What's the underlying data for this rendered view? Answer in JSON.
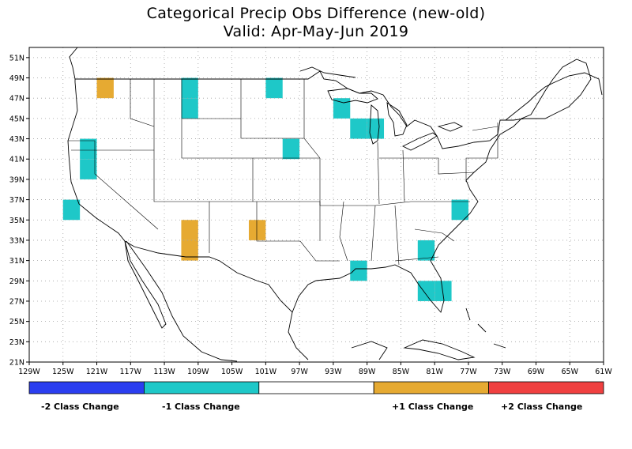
{
  "title": "Categorical Precip Obs Difference (new-old)",
  "subtitle": "Valid: Apr-May-Jun 2019",
  "colors": {
    "minus2": "#2b3ef0",
    "minus1": "#1ec8c8",
    "zero": "#ffffff",
    "plus1": "#e6aa32",
    "plus2": "#f04040",
    "grid": "#a0a0a0",
    "outline": "#000000"
  },
  "map": {
    "lon_range": [
      -129,
      -61
    ],
    "lat_range": [
      21,
      52
    ],
    "lon_ticks": [
      "129W",
      "125W",
      "121W",
      "117W",
      "113W",
      "109W",
      "105W",
      "101W",
      "97W",
      "93W",
      "89W",
      "85W",
      "81W",
      "77W",
      "73W",
      "69W",
      "65W",
      "61W"
    ],
    "lat_ticks": [
      "21N",
      "23N",
      "25N",
      "27N",
      "29N",
      "31N",
      "33N",
      "35N",
      "37N",
      "39N",
      "41N",
      "43N",
      "45N",
      "47N",
      "49N",
      "51N"
    ]
  },
  "cells": [
    {
      "lon": -120,
      "lat": 48,
      "cls": 1
    },
    {
      "lon": -110,
      "lat": 48,
      "cls": -1
    },
    {
      "lon": -110,
      "lat": 46,
      "cls": -1
    },
    {
      "lon": -100,
      "lat": 48,
      "cls": -1
    },
    {
      "lon": -92,
      "lat": 46,
      "cls": -1
    },
    {
      "lon": -90,
      "lat": 44,
      "cls": -1
    },
    {
      "lon": -88,
      "lat": 44,
      "cls": -1
    },
    {
      "lon": -98,
      "lat": 42,
      "cls": -1
    },
    {
      "lon": -122,
      "lat": 42,
      "cls": -1
    },
    {
      "lon": -122,
      "lat": 40,
      "cls": -1
    },
    {
      "lon": -124,
      "lat": 36,
      "cls": -1
    },
    {
      "lon": -110,
      "lat": 34,
      "cls": 1
    },
    {
      "lon": -110,
      "lat": 32,
      "cls": 1
    },
    {
      "lon": -102,
      "lat": 34,
      "cls": 1
    },
    {
      "lon": -78,
      "lat": 36,
      "cls": -1
    },
    {
      "lon": -82,
      "lat": 32,
      "cls": -1
    },
    {
      "lon": -90,
      "lat": 30,
      "cls": -1
    },
    {
      "lon": -82,
      "lat": 28,
      "cls": -1
    },
    {
      "lon": -80,
      "lat": 28,
      "cls": -1
    }
  ],
  "legend": {
    "labels": [
      "-2 Class Change",
      "-1 Class Change",
      "+1 Class Change",
      "+2 Class Change"
    ]
  }
}
